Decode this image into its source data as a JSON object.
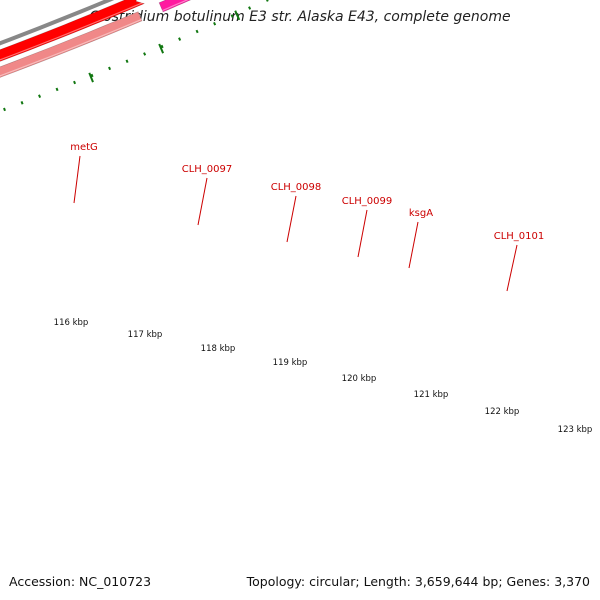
{
  "title": "Clostridium botulinum E3 str. Alaska E43, complete genome",
  "footer": {
    "accession": "Accession: NC_010723",
    "stats": "Topology: circular; Length: 3,659,644 bp; Genes: 3,370"
  },
  "colors": {
    "backbone": "#888888",
    "forward_cds": "#ff0000",
    "label": "#cc0000",
    "dots": "#117711",
    "pink_pale": "#f08888",
    "magenta": "#ff1aa0",
    "gray_gene": "#666666"
  },
  "axis_labels": [
    "116 kbp",
    "117 kbp",
    "118 kbp",
    "119 kbp",
    "120 kbp",
    "121 kbp",
    "122 kbp",
    "123 kbp"
  ],
  "gene_labels": [
    "metG",
    "CLH_0097",
    "CLH_0098",
    "CLH_0099",
    "ksgA",
    "CLH_0101"
  ]
}
